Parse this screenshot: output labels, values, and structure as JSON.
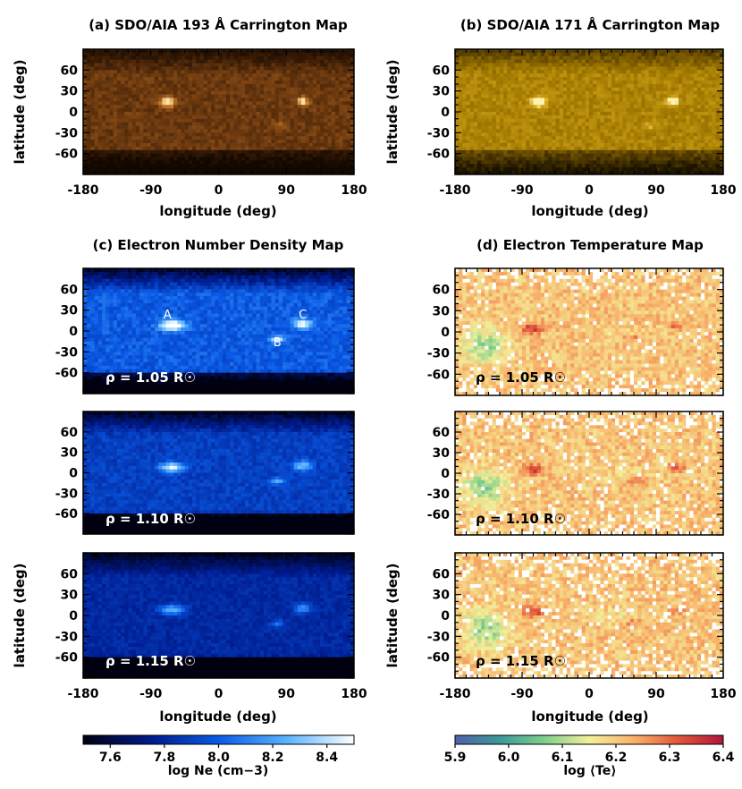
{
  "colors": {
    "aia193": [
      "#120800",
      "#3a1c06",
      "#7a4212",
      "#c0782a",
      "#ffe0a0"
    ],
    "aia171": [
      "#1a1200",
      "#5a4100",
      "#a07800",
      "#d6a81c",
      "#fff2b0"
    ],
    "density": [
      "#000010",
      "#001a8c",
      "#0a5be6",
      "#59b2ff",
      "#ffffff"
    ],
    "temperature": [
      "#5160a8",
      "#3b9a9a",
      "#7fcf8a",
      "#f3ef9b",
      "#f8b26a",
      "#e2553a",
      "#b0153a"
    ]
  },
  "chart_data": [
    {
      "type": "heatmap",
      "id": "a",
      "title": "(a) SDO/AIA 193 Å Carrington Map",
      "xlabel": "longitude (deg)",
      "ylabel": "latitude (deg)",
      "xlim": [
        -180,
        180
      ],
      "ylim": [
        -90,
        90
      ],
      "xticks": [
        "-180",
        "-90",
        "0",
        "90",
        "180"
      ],
      "yticks": [
        "60",
        "30",
        "0",
        "-30",
        "-60"
      ],
      "colormap": "aia193"
    },
    {
      "type": "heatmap",
      "id": "b",
      "title": "(b) SDO/AIA 171 Å Carrington Map",
      "xlabel": "longitude (deg)",
      "ylabel": "latitude (deg)",
      "xlim": [
        -180,
        180
      ],
      "ylim": [
        -90,
        90
      ],
      "xticks": [
        "-180",
        "-90",
        "0",
        "90",
        "180"
      ],
      "yticks": [
        "60",
        "30",
        "0",
        "-30",
        "-60"
      ],
      "colormap": "aia171"
    },
    {
      "type": "heatmap",
      "id": "c",
      "title": "(c) Electron Number Density Map",
      "xlabel": "longitude (deg)",
      "ylabel": "latitude (deg)",
      "xlim": [
        -180,
        180
      ],
      "ylim": [
        -90,
        90
      ],
      "xticks": [
        "-180",
        "-90",
        "0",
        "90",
        "180"
      ],
      "yticks": [
        "60",
        "30",
        "0",
        "-30",
        "-60"
      ],
      "rho_labels": [
        "ρ = 1.05 R☉",
        "ρ = 1.10 R☉",
        "ρ = 1.15 R☉"
      ],
      "active_regions": [
        {
          "label": "A",
          "lon": -68,
          "lat": 18
        },
        {
          "label": "C",
          "lon": 112,
          "lat": 18
        },
        {
          "label": "B",
          "lon": 78,
          "lat": -22
        }
      ],
      "colorbar": {
        "label": "log Ne (cm−3)",
        "ticks": [
          "7.6",
          "7.8",
          "8.0",
          "8.2",
          "8.4"
        ],
        "tick_values": [
          7.6,
          7.8,
          8.0,
          8.2,
          8.4
        ],
        "range": [
          7.5,
          8.5
        ]
      },
      "colormap": "density"
    },
    {
      "type": "heatmap",
      "id": "d",
      "title": "(d) Electron Temperature Map",
      "xlabel": "longitude (deg)",
      "ylabel": "latitude (deg)",
      "xlim": [
        -180,
        180
      ],
      "ylim": [
        -90,
        90
      ],
      "xticks": [
        "-180",
        "-90",
        "0",
        "90",
        "180"
      ],
      "yticks": [
        "60",
        "30",
        "0",
        "-30",
        "-60"
      ],
      "rho_labels": [
        "ρ = 1.05 R☉",
        "ρ = 1.10 R☉",
        "ρ = 1.15 R☉"
      ],
      "colorbar": {
        "label": "log ⟨Te⟩",
        "ticks": [
          "5.9",
          "6.0",
          "6.1",
          "6.2",
          "6.3",
          "6.4"
        ],
        "tick_values": [
          5.9,
          6.0,
          6.1,
          6.2,
          6.3,
          6.4
        ],
        "range": [
          5.9,
          6.4
        ]
      },
      "colormap": "temperature"
    }
  ]
}
